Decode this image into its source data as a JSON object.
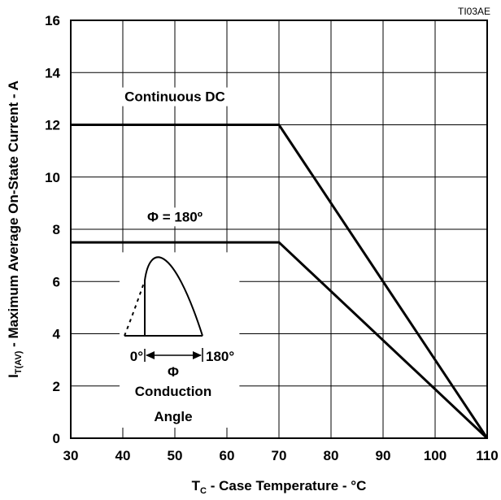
{
  "chart_data": {
    "type": "line",
    "figure_id": "TI03AE",
    "xlabel": {
      "main": "T",
      "sub": "C",
      "rest": " - Case Temperature - °C"
    },
    "ylabel": {
      "main": "I",
      "sub": "T(AV)",
      "rest": " - Maximum Average On-State Current - A"
    },
    "xlim": [
      30,
      110
    ],
    "ylim": [
      0,
      16
    ],
    "x_ticks": [
      30,
      40,
      50,
      60,
      70,
      80,
      90,
      100,
      110
    ],
    "y_ticks": [
      0,
      2,
      4,
      6,
      8,
      10,
      12,
      14,
      16
    ],
    "grid": true,
    "series": [
      {
        "name": "Continuous DC",
        "x": [
          30,
          70,
          110
        ],
        "y": [
          12,
          12,
          0
        ]
      },
      {
        "name": "Φ = 180º",
        "x": [
          30,
          70,
          110
        ],
        "y": [
          7.5,
          7.5,
          0
        ]
      }
    ],
    "inset": {
      "label_0": "0°",
      "label_180": "180°",
      "phi": "Φ",
      "caption_line1": "Conduction",
      "caption_line2": "Angle"
    }
  }
}
